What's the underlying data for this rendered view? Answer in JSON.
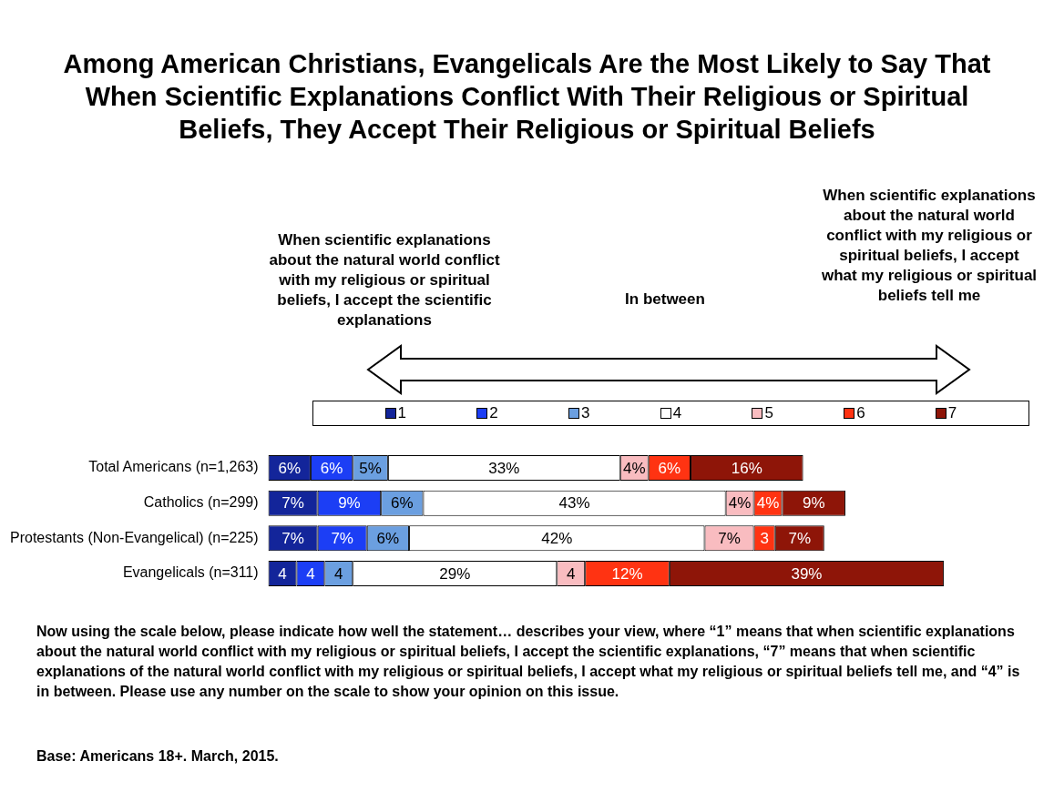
{
  "chart_data": {
    "type": "bar",
    "orientation": "horizontal",
    "stacked": true,
    "title": "Among American Christians, Evangelicals Are the Most Likely to Say That When Scientific Explanations Conflict With Their Religious or Spiritual Beliefs, They Accept Their Religious or Spiritual Beliefs",
    "categories": [
      "Total Americans (n=1,263)",
      "Catholics (n=299)",
      "Protestants (Non-Evangelical) (n=225)",
      "Evangelicals (n=311)"
    ],
    "series": [
      {
        "name": "1",
        "color": "#13259a",
        "values": [
          6,
          7,
          7,
          4
        ],
        "value_labels": [
          "6%",
          "7%",
          "7%",
          "4"
        ]
      },
      {
        "name": "2",
        "color": "#1c3ef5",
        "values": [
          6,
          9,
          7,
          4
        ],
        "value_labels": [
          "6%",
          "9%",
          "7%",
          "4"
        ]
      },
      {
        "name": "3",
        "color": "#6b9fe0",
        "values": [
          5,
          6,
          6,
          4
        ],
        "value_labels": [
          "5%",
          "6%",
          "6%",
          "4"
        ]
      },
      {
        "name": "4",
        "color": "#ffffff",
        "values": [
          33,
          43,
          42,
          29
        ],
        "value_labels": [
          "33%",
          "43%",
          "42%",
          "29%"
        ]
      },
      {
        "name": "5",
        "color": "#f9bcc0",
        "values": [
          4,
          4,
          7,
          4
        ],
        "value_labels": [
          "4%",
          "4%",
          "7%",
          "4"
        ]
      },
      {
        "name": "6",
        "color": "#ff3312",
        "values": [
          6,
          4,
          3,
          12
        ],
        "value_labels": [
          "6%",
          "4%",
          "3",
          "12%"
        ]
      },
      {
        "name": "7",
        "color": "#8e1508",
        "values": [
          16,
          9,
          7,
          39
        ],
        "value_labels": [
          "16%",
          "9%",
          "7%",
          "39%"
        ]
      }
    ],
    "legend": "top",
    "tick_labels": "y",
    "annotations": [
      "When scientific explanations about the natural world conflict with my religious or spiritual beliefs, I accept the scientific explanations",
      "In between",
      "When scientific explanations about the natural world conflict with my religious or spiritual beliefs, I accept what my religious or spiritual beliefs tell me",
      "Now using the scale below, please indicate how well the statement… describes your view, where “1” means that when scientific explanations about the natural world conflict with my religious or spiritual beliefs, I accept the scientific explanations, “7” means that when scientific explanations of the natural world conflict with my religious or spiritual beliefs, I accept what my religious or spiritual beliefs tell me, and “4” is in between. Please use any number on the scale to show your opinion on this issue.",
      "Base: Americans 18+. March, 2015."
    ]
  }
}
